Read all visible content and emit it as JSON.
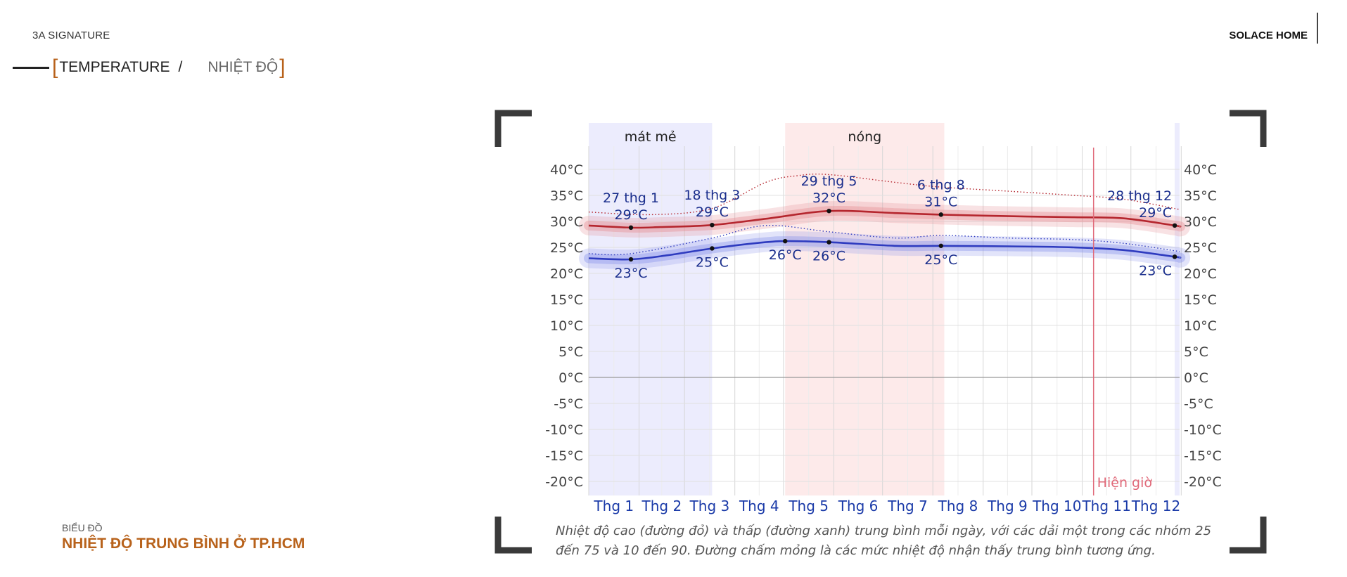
{
  "header": {
    "brand_left": "3A SIGNATURE",
    "brand_right": "SOLACE HOME",
    "title_en": "TEMPERATURE",
    "title_sep": "/",
    "title_vi": "NHIỆT ĐỘ"
  },
  "footer": {
    "label": "BIỂU ĐỒ",
    "title": "NHIỆT ĐỘ TRUNG BÌNH Ở TP.HCM"
  },
  "caption": {
    "line1": "Nhiệt độ cao (đường đỏ) và thấp (đường xanh) trung bình mỗi ngày, với các dải một trong các nhóm 25",
    "line2": "đến 75 và 10 đến 90. Đường chấm mỏng là các mức nhiệt độ nhận thấy trung bình tương ứng."
  },
  "chart_data": {
    "type": "line",
    "title": "",
    "xlabel": "",
    "ylabel": "",
    "ylim": [
      -20,
      40
    ],
    "y_ticks": [
      "40°C",
      "35°C",
      "30°C",
      "25°C",
      "20°C",
      "15°C",
      "10°C",
      "5°C",
      "0°C",
      "-5°C",
      "-10°C",
      "-15°C",
      "-20°C"
    ],
    "categories": [
      "Thg 1",
      "Thg 2",
      "Thg 3",
      "Thg 4",
      "Thg 5",
      "Thg 6",
      "Thg 7",
      "Thg 8",
      "Thg 9",
      "Thg 10",
      "Thg 11",
      "Thg 12"
    ],
    "grid": true,
    "series_colors": {
      "high": "#b5262e",
      "low": "#2e3bbf"
    },
    "series": [
      {
        "key": "high",
        "values_by_day": [
          [
            1,
            29.2
          ],
          [
            27,
            28.8
          ],
          [
            45,
            28.9
          ],
          [
            77,
            29.3
          ],
          [
            110,
            30.5
          ],
          [
            149,
            32.0
          ],
          [
            190,
            31.6
          ],
          [
            218,
            31.3
          ],
          [
            260,
            31.0
          ],
          [
            300,
            30.8
          ],
          [
            330,
            30.6
          ],
          [
            362,
            29.2
          ],
          [
            365,
            29.0
          ]
        ]
      },
      {
        "key": "low",
        "values_by_day": [
          [
            1,
            22.9
          ],
          [
            27,
            22.7
          ],
          [
            50,
            23.5
          ],
          [
            77,
            24.8
          ],
          [
            110,
            26.0
          ],
          [
            125,
            26.2
          ],
          [
            149,
            26.0
          ],
          [
            190,
            25.3
          ],
          [
            218,
            25.3
          ],
          [
            260,
            25.2
          ],
          [
            300,
            25.0
          ],
          [
            330,
            24.5
          ],
          [
            362,
            23.2
          ],
          [
            365,
            23.0
          ]
        ]
      },
      {
        "key": "high_feels",
        "style": "dotted",
        "values_by_day": [
          [
            1,
            31.8
          ],
          [
            40,
            31.3
          ],
          [
            77,
            32.5
          ],
          [
            110,
            37.5
          ],
          [
            130,
            38.8
          ],
          [
            149,
            39.0
          ],
          [
            190,
            37.5
          ],
          [
            218,
            36.6
          ],
          [
            260,
            35.8
          ],
          [
            300,
            35.0
          ],
          [
            330,
            34.3
          ],
          [
            365,
            32.3
          ]
        ]
      },
      {
        "key": "low_feels",
        "style": "dotted",
        "values_by_day": [
          [
            1,
            23.8
          ],
          [
            27,
            23.8
          ],
          [
            77,
            26.8
          ],
          [
            110,
            29.2
          ],
          [
            149,
            28.0
          ],
          [
            190,
            26.8
          ],
          [
            218,
            27.3
          ],
          [
            260,
            26.8
          ],
          [
            300,
            26.5
          ],
          [
            330,
            25.8
          ],
          [
            365,
            24.2
          ]
        ]
      }
    ],
    "seasons": [
      {
        "label": "mát mẻ",
        "start_day": 1,
        "end_day": 77,
        "color": "#ececfd"
      },
      {
        "label": "nóng",
        "start_day": 122,
        "end_day": 220,
        "color": "#fdeaea"
      },
      {
        "label": "",
        "start_day": 362,
        "end_day": 365,
        "color": "#ececfd"
      }
    ],
    "annotations": [
      {
        "date": "27 thg 1",
        "high": "29°C",
        "low": "23°C",
        "day": 27,
        "high_value": 28.8,
        "low_value": 22.7
      },
      {
        "date": "18 thg 3",
        "high": "29°C",
        "low": "25°C",
        "day": 77,
        "high_value": 29.3,
        "low_value": 24.8
      },
      {
        "date": "29 thg 5",
        "high": "32°C",
        "low": "26°C",
        "day": 149,
        "high_value": 32.0,
        "low_value": 26.0
      },
      {
        "date": "6 thg 8",
        "high": "31°C",
        "low": "25°C",
        "day": 218,
        "high_value": 31.3,
        "low_value": 25.3
      },
      {
        "date": "28 thg 12",
        "high": "29°C",
        "low": "23°C",
        "day": 362,
        "high_value": 29.2,
        "low_value": 23.2
      }
    ],
    "extra_low_labels": [
      {
        "text": "26°C",
        "day": 122,
        "value": 26.2
      }
    ],
    "now_marker": {
      "label": "Hiện giờ",
      "day": 312
    }
  }
}
